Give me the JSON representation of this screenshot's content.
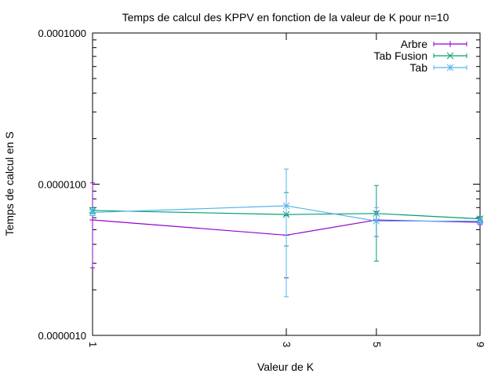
{
  "chart_data": {
    "type": "line",
    "title": "Temps de calcul des KPPV en fonction de la valeur de K pour n=10",
    "xlabel": "Valeur de K",
    "ylabel": "Temps de calcul en S",
    "x_scale": "log",
    "y_scale": "log",
    "xlim": [
      1,
      9
    ],
    "ylim": [
      1e-06,
      0.0001
    ],
    "x_ticks": [
      {
        "value": 1,
        "label": "1"
      },
      {
        "value": 3,
        "label": "3"
      },
      {
        "value": 5,
        "label": "5"
      },
      {
        "value": 9,
        "label": "9"
      }
    ],
    "y_ticks": [
      {
        "value": 1e-06,
        "label": "0.0000010"
      },
      {
        "value": 1e-05,
        "label": "0.0000100"
      },
      {
        "value": 0.0001,
        "label": "0.0001000"
      }
    ],
    "grid": false,
    "legend_position": "top-right",
    "series": [
      {
        "name": "Arbre",
        "color": "#9400d3",
        "marker": "plus",
        "points": [
          {
            "x": 1,
            "y": 5.8e-06,
            "ylow": 2.8e-06,
            "yhigh": 1.02e-05
          },
          {
            "x": 3,
            "y": 4.6e-06,
            "ylow": 2.4e-06,
            "yhigh": 6.2e-06
          },
          {
            "x": 5,
            "y": 5.8e-06,
            "ylow": 4.5e-06,
            "yhigh": 6.6e-06
          },
          {
            "x": 9,
            "y": 5.6e-06,
            "ylow": 5.4e-06,
            "yhigh": 5.8e-06
          }
        ]
      },
      {
        "name": "Tab Fusion",
        "color": "#009e73",
        "marker": "x",
        "points": [
          {
            "x": 1,
            "y": 6.7e-06,
            "ylow": 6.4e-06,
            "yhigh": 7e-06
          },
          {
            "x": 3,
            "y": 6.3e-06,
            "ylow": 3.9e-06,
            "yhigh": 8.8e-06
          },
          {
            "x": 5,
            "y": 6.4e-06,
            "ylow": 3.1e-06,
            "yhigh": 9.8e-06
          },
          {
            "x": 9,
            "y": 5.9e-06,
            "ylow": 5.7e-06,
            "yhigh": 6.1e-06
          }
        ]
      },
      {
        "name": "Tab",
        "color": "#56b4e9",
        "marker": "star",
        "points": [
          {
            "x": 1,
            "y": 6.5e-06,
            "ylow": 6.2e-06,
            "yhigh": 6.8e-06
          },
          {
            "x": 3,
            "y": 7.2e-06,
            "ylow": 1.8e-06,
            "yhigh": 1.26e-05
          },
          {
            "x": 5,
            "y": 5.7e-06,
            "ylow": 4.5e-06,
            "yhigh": 7e-06
          },
          {
            "x": 9,
            "y": 5.7e-06,
            "ylow": 5.5e-06,
            "yhigh": 5.9e-06
          }
        ]
      }
    ]
  }
}
